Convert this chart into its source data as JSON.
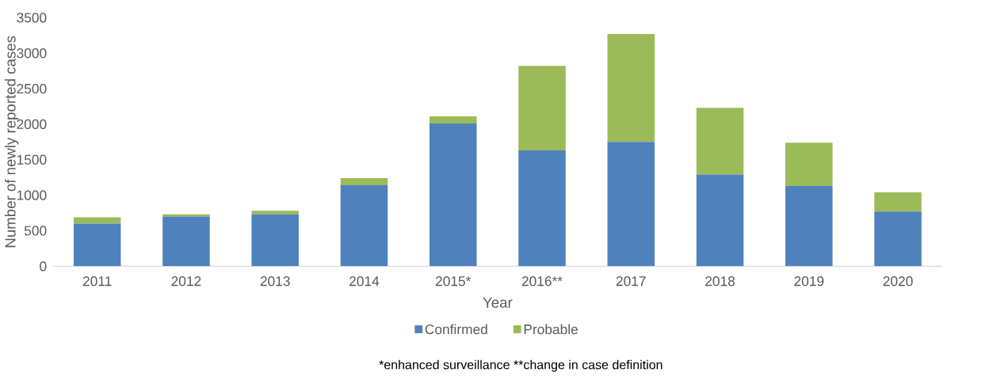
{
  "chart_data": {
    "type": "bar",
    "stacked": true,
    "xlabel": "Year",
    "ylabel": "Number of newly reported cases",
    "categories": [
      "2011",
      "2012",
      "2013",
      "2014",
      "2015*",
      "2016**",
      "2017",
      "2018",
      "2019",
      "2020"
    ],
    "series": [
      {
        "name": "Confirmed",
        "color": "#4f81bd",
        "values": [
          600,
          700,
          730,
          1140,
          2010,
          1630,
          1750,
          1290,
          1130,
          770
        ]
      },
      {
        "name": "Probable",
        "color": "#9bbb59",
        "values": [
          90,
          30,
          50,
          100,
          100,
          1190,
          1520,
          940,
          610,
          270
        ]
      }
    ],
    "ylim": [
      0,
      3500
    ],
    "yticks": [
      0,
      500,
      1000,
      1500,
      2000,
      2500,
      3000,
      3500
    ],
    "legend": "bottom",
    "annotations": [
      "*enhanced surveillance   **change in case definition"
    ]
  }
}
